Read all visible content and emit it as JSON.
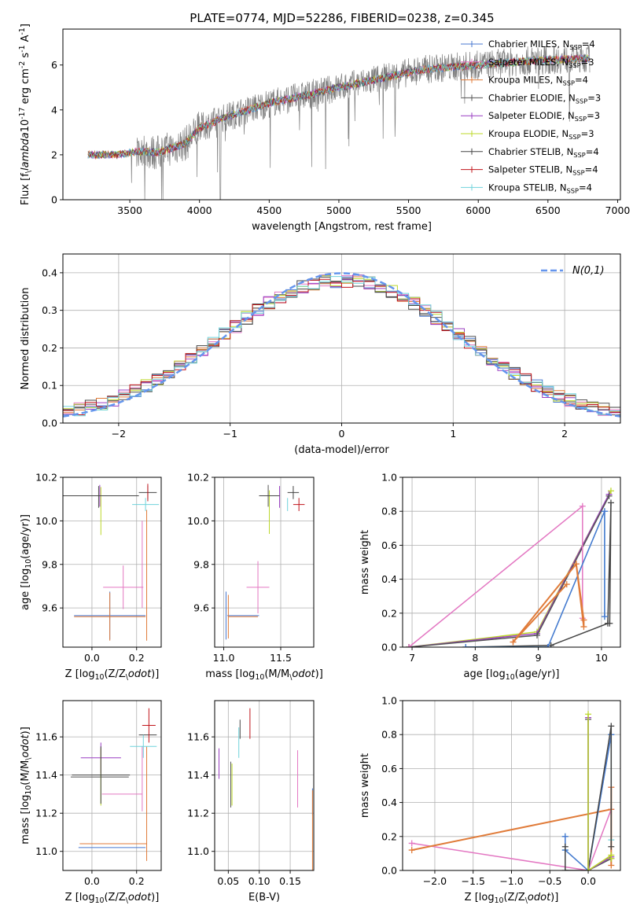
{
  "figure": {
    "title": "PLATE=0774, MJD=52286, FIBERID=0238, z=0.345"
  },
  "models": [
    {
      "label": "Chabrier MILES, N$_{SSP}$=4",
      "short": "Chabrier MILES",
      "nssp": "4",
      "color": "#4878d0"
    },
    {
      "label": "Salpeter MILES, N$_{SSP}$=3",
      "short": "Salpeter MILES",
      "nssp": "3",
      "color": "#e377c2"
    },
    {
      "label": "Kroupa MILES, N$_{SSP}$=4",
      "short": "Kroupa MILES",
      "nssp": "4",
      "color": "#e07b39"
    },
    {
      "label": "Chabrier ELODIE, N$_{SSP}$=3",
      "short": "Chabrier ELODIE",
      "nssp": "3",
      "color": "#555555"
    },
    {
      "label": "Salpeter ELODIE, N$_{SSP}$=3",
      "short": "Salpeter ELODIE",
      "nssp": "3",
      "color": "#9a3fc2"
    },
    {
      "label": "Kroupa ELODIE, N$_{SSP}$=3",
      "short": "Kroupa ELODIE",
      "nssp": "3",
      "color": "#bcd82a"
    },
    {
      "label": "Chabrier STELIB, N$_{SSP}$=4",
      "short": "Chabrier STELIB",
      "nssp": "4",
      "color": "#444444"
    },
    {
      "label": "Salpeter STELIB, N$_{SSP}$=4",
      "short": "Salpeter STELIB",
      "nssp": "4",
      "color": "#c0141b"
    },
    {
      "label": "Kroupa STELIB, N$_{SSP}$=4",
      "short": "Kroupa STELIB",
      "nssp": "4",
      "color": "#6fd3db"
    }
  ],
  "chart_data": [
    {
      "id": "spectrum",
      "type": "line",
      "xlabel": "wavelength [Angstrom, rest frame]",
      "ylabel": "Flux [f$_\\lambda$10$^{-17}$ erg cm$^{-2}$ s$^{-1}$ A$^{-1}$]",
      "xlim": [
        3020,
        7020
      ],
      "ylim": [
        0,
        7.6
      ],
      "xticks": [
        3500,
        4000,
        4500,
        5000,
        5500,
        6000,
        6500,
        7000
      ],
      "yticks": [
        0,
        2,
        4,
        6
      ],
      "grid": false,
      "legend": "top-right",
      "data_start": 3200,
      "data_end": 6800,
      "continuum_anchors": [
        [
          3200,
          2.0
        ],
        [
          3400,
          2.0
        ],
        [
          3550,
          2.15
        ],
        [
          3700,
          2.1
        ],
        [
          3900,
          2.5
        ],
        [
          4000,
          3.2
        ],
        [
          4200,
          3.7
        ],
        [
          4500,
          4.3
        ],
        [
          4800,
          4.7
        ],
        [
          5000,
          5.0
        ],
        [
          5300,
          5.4
        ],
        [
          5600,
          5.8
        ],
        [
          6000,
          6.0
        ],
        [
          6400,
          6.2
        ],
        [
          6800,
          6.3
        ]
      ]
    },
    {
      "id": "residuals",
      "type": "bar",
      "xlabel": "(data-model)/error",
      "ylabel": "Normed distribution",
      "xlim": [
        -2.5,
        2.5
      ],
      "ylim": [
        0,
        0.45
      ],
      "xticks": [
        -2,
        -1,
        0,
        1,
        2
      ],
      "yticks": [
        0.0,
        0.1,
        0.2,
        0.3,
        0.4
      ],
      "grid": true,
      "legend": "top-right",
      "bin_width": 0.1,
      "reference_curve": {
        "label": "$\\mathcal{N}(0,1)$",
        "mean": 0,
        "sigma": 1,
        "color": "#6495ED"
      }
    },
    {
      "id": "age-vs-Z",
      "type": "scatter",
      "xlabel": "Z [log$_{10}$(Z/Z$_\\odot$)]",
      "ylabel": "age  [log$_{10}$(age/yr)]",
      "xlim": [
        -0.13,
        0.31
      ],
      "ylim": [
        9.42,
        10.2
      ],
      "xticks": [
        0.0,
        0.2
      ],
      "yticks": [
        9.6,
        9.8,
        10.0,
        10.2
      ],
      "grid": true,
      "points": [
        {
          "m": 0,
          "x": 0.08,
          "y": 9.565,
          "xe": 0.16,
          "ye": 0.11
        },
        {
          "m": 1,
          "x": 0.14,
          "y": 9.695,
          "xe": 0.09,
          "ye": 0.1
        },
        {
          "m": 1,
          "x": 0.225,
          "y": 9.8,
          "xe": 0.0,
          "ye": 0.2
        },
        {
          "m": 2,
          "x": 0.08,
          "y": 9.56,
          "xe": 0.16,
          "ye": 0.11
        },
        {
          "m": 2,
          "x": 0.245,
          "y": 9.75,
          "xe": 0.0,
          "ye": 0.3
        },
        {
          "m": 3,
          "x": 0.03,
          "y": 10.11,
          "xe": 0.0,
          "ye": 0.05
        },
        {
          "m": 4,
          "x": 0.035,
          "y": 10.115,
          "xe": 0.0,
          "ye": 0.05
        },
        {
          "m": 5,
          "x": 0.04,
          "y": 10.045,
          "xe": 0.0,
          "ye": 0.11
        },
        {
          "m": 6,
          "x": 0.25,
          "y": 10.13,
          "xe": 0.04,
          "ye": 0.03
        },
        {
          "m": 6,
          "x": 0.04,
          "y": 10.115,
          "xe": 0.17,
          "ye": 0.0
        },
        {
          "m": 7,
          "x": 0.25,
          "y": 10.13,
          "xe": 0.0,
          "ye": 0.04
        },
        {
          "m": 8,
          "x": 0.24,
          "y": 10.075,
          "xe": 0.06,
          "ye": 0.03
        }
      ]
    },
    {
      "id": "age-vs-mass",
      "type": "scatter",
      "xlabel": "mass [log$_{10}$(M/M$_\\odot$)]",
      "ylabel": "",
      "xlim": [
        10.92,
        11.79
      ],
      "ylim": [
        9.42,
        10.2
      ],
      "xticks": [
        11.0,
        11.5
      ],
      "yticks": [
        9.6,
        9.8,
        10.0,
        10.2
      ],
      "grid": true,
      "points": [
        {
          "m": 0,
          "x": 11.02,
          "y": 9.565,
          "xe": 0.0,
          "ye": 0.11
        },
        {
          "m": 0,
          "x": 11.17,
          "y": 9.565,
          "xe": 0.14,
          "ye": 0.0
        },
        {
          "m": 1,
          "x": 11.3,
          "y": 9.695,
          "xe": 0.1,
          "ye": 0.12
        },
        {
          "m": 2,
          "x": 11.04,
          "y": 9.56,
          "xe": 0.0,
          "ye": 0.1
        },
        {
          "m": 2,
          "x": 11.17,
          "y": 9.56,
          "xe": 0.13,
          "ye": 0.0
        },
        {
          "m": 3,
          "x": 11.39,
          "y": 10.115,
          "xe": 0.0,
          "ye": 0.05
        },
        {
          "m": 4,
          "x": 11.49,
          "y": 10.11,
          "xe": 0.0,
          "ye": 0.05
        },
        {
          "m": 5,
          "x": 11.4,
          "y": 10.04,
          "xe": 0.0,
          "ye": 0.1
        },
        {
          "m": 6,
          "x": 11.4,
          "y": 10.115,
          "xe": 0.09,
          "ye": 0.0
        },
        {
          "m": 6,
          "x": 11.61,
          "y": 10.13,
          "xe": 0.05,
          "ye": 0.03
        },
        {
          "m": 7,
          "x": 11.66,
          "y": 10.075,
          "xe": 0.05,
          "ye": 0.03
        },
        {
          "m": 8,
          "x": 11.56,
          "y": 10.075,
          "xe": 0.0,
          "ye": 0.03
        }
      ]
    },
    {
      "id": "massweight-vs-age",
      "type": "line",
      "xlabel": "age  [log$_{10}$(age/yr)]",
      "ylabel": "mass weight",
      "xlim": [
        6.85,
        10.3
      ],
      "ylim": [
        0,
        1.0
      ],
      "xticks": [
        7,
        8,
        9,
        10
      ],
      "yticks": [
        0.0,
        0.2,
        0.4,
        0.6,
        0.8,
        1.0
      ],
      "grid": true,
      "series": [
        {
          "m": 5,
          "x": [
            6.95,
            8.98,
            10.15
          ],
          "y": [
            0.0,
            0.09,
            0.92
          ]
        },
        {
          "m": 4,
          "x": [
            6.95,
            8.98,
            10.12
          ],
          "y": [
            0.0,
            0.08,
            0.9
          ]
        },
        {
          "m": 3,
          "x": [
            6.95,
            8.98,
            10.12
          ],
          "y": [
            0.0,
            0.07,
            0.89
          ]
        },
        {
          "m": 1,
          "x": [
            6.95,
            9.7,
            9.7
          ],
          "y": [
            0.0,
            0.83,
            0.17
          ]
        },
        {
          "m": 6,
          "x": [
            7.85,
            9.2,
            10.1,
            10.15,
            10.13
          ],
          "y": [
            0.0,
            0.01,
            0.14,
            0.85,
            0.14
          ]
        },
        {
          "m": 8,
          "x": [
            7.85,
            9.15,
            10.05,
            10.05
          ],
          "y": [
            0.0,
            0.0,
            0.8,
            0.18
          ]
        },
        {
          "m": 0,
          "x": [
            7.85,
            9.15,
            10.05,
            10.05
          ],
          "y": [
            0.0,
            0.0,
            0.8,
            0.18
          ]
        },
        {
          "m": 2,
          "x": [
            8.6,
            9.6,
            9.72,
            9.72,
            9.6
          ],
          "y": [
            0.03,
            0.49,
            0.12,
            0.16,
            0.49
          ]
        },
        {
          "m": 2,
          "x": [
            8.6,
            9.45
          ],
          "y": [
            0.03,
            0.37
          ]
        }
      ]
    },
    {
      "id": "mass-vs-Z",
      "type": "scatter",
      "xlabel": "Z [log$_{10}$(Z/Z$_\\odot$)]",
      "ylabel": "mass [log$_{10}$(M/M$_\\odot$)]",
      "xlim": [
        -0.13,
        0.31
      ],
      "ylim": [
        10.9,
        11.79
      ],
      "xticks": [
        0.0,
        0.2
      ],
      "yticks": [
        11.0,
        11.2,
        11.4,
        11.6
      ],
      "grid": true,
      "points": [
        {
          "m": 0,
          "x": 0.09,
          "y": 11.02,
          "xe": 0.15,
          "ye": 0.0
        },
        {
          "m": 1,
          "x": 0.135,
          "y": 11.3,
          "xe": 0.09,
          "ye": 0.0
        },
        {
          "m": 1,
          "x": 0.225,
          "y": 11.38,
          "xe": 0.0,
          "ye": 0.17
        },
        {
          "m": 2,
          "x": 0.095,
          "y": 11.04,
          "xe": 0.15,
          "ye": 0.0
        },
        {
          "m": 2,
          "x": 0.245,
          "y": 11.25,
          "xe": 0.0,
          "ye": 0.3
        },
        {
          "m": 3,
          "x": 0.035,
          "y": 11.39,
          "xe": 0.13,
          "ye": 0.0
        },
        {
          "m": 4,
          "x": 0.04,
          "y": 11.49,
          "xe": 0.09,
          "ye": 0.08
        },
        {
          "m": 5,
          "x": 0.04,
          "y": 11.39,
          "xe": 0.0,
          "ye": 0.15
        },
        {
          "m": 6,
          "x": 0.04,
          "y": 11.4,
          "xe": 0.13,
          "ye": 0.15
        },
        {
          "m": 6,
          "x": 0.25,
          "y": 11.61,
          "xe": 0.04,
          "ye": 0.0
        },
        {
          "m": 7,
          "x": 0.255,
          "y": 11.66,
          "xe": 0.03,
          "ye": 0.09
        },
        {
          "m": 8,
          "x": 0.23,
          "y": 11.55,
          "xe": 0.06,
          "ye": 0.06
        }
      ]
    },
    {
      "id": "mass-vs-ebv",
      "type": "scatter",
      "xlabel": "E(B-V)",
      "ylabel": "",
      "xlim": [
        0.028,
        0.188
      ],
      "ylim": [
        10.9,
        11.79
      ],
      "xticks": [
        0.05,
        0.1,
        0.15
      ],
      "yticks": [
        11.0,
        11.2,
        11.4,
        11.6
      ],
      "grid": true,
      "points": [
        {
          "m": 0,
          "x": 0.186,
          "y": 11.26,
          "xe": 0.0,
          "ye": 0.07
        },
        {
          "m": 1,
          "x": 0.162,
          "y": 11.38,
          "xe": 0.0,
          "ye": 0.15
        },
        {
          "m": 2,
          "x": 0.186,
          "y": 11.06,
          "xe": 0.0,
          "ye": 0.26
        },
        {
          "m": 3,
          "x": 0.054,
          "y": 11.35,
          "xe": 0.0,
          "ye": 0.12
        },
        {
          "m": 4,
          "x": 0.035,
          "y": 11.46,
          "xe": 0.0,
          "ye": 0.08
        },
        {
          "m": 5,
          "x": 0.056,
          "y": 11.35,
          "xe": 0.0,
          "ye": 0.11
        },
        {
          "m": 6,
          "x": 0.069,
          "y": 11.64,
          "xe": 0.0,
          "ye": 0.05
        },
        {
          "m": 7,
          "x": 0.085,
          "y": 11.67,
          "xe": 0.0,
          "ye": 0.08
        },
        {
          "m": 8,
          "x": 0.067,
          "y": 11.57,
          "xe": 0.0,
          "ye": 0.08
        }
      ]
    },
    {
      "id": "massweight-vs-Z",
      "type": "line",
      "xlabel": "Z [log$_{10}$(Z/Z$_\\odot$)]",
      "ylabel": "mass weight",
      "xlim": [
        -2.42,
        0.42
      ],
      "ylim": [
        0,
        1.0
      ],
      "xticks": [
        -2.0,
        -1.5,
        -1.0,
        -0.5,
        0.0
      ],
      "yticks": [
        0.0,
        0.2,
        0.4,
        0.6,
        0.8,
        1.0
      ],
      "grid": true,
      "series": [
        {
          "m": 1,
          "x": [
            -2.3,
            0.0,
            0.3,
            0.3
          ],
          "y": [
            0.16,
            0.0,
            0.36,
            0.49
          ]
        },
        {
          "m": 2,
          "x": [
            -2.3,
            0.3,
            0.3,
            0.3
          ],
          "y": [
            0.12,
            0.36,
            0.49,
            0.03
          ]
        },
        {
          "m": 8,
          "x": [
            -0.3,
            -0.3,
            0.0,
            0.3,
            0.3
          ],
          "y": [
            0.2,
            0.12,
            0.0,
            0.8,
            0.18
          ]
        },
        {
          "m": 0,
          "x": [
            -0.3,
            -0.3,
            0.0,
            0.3
          ],
          "y": [
            0.2,
            0.12,
            0.0,
            0.8
          ]
        },
        {
          "m": 6,
          "x": [
            -0.3,
            -0.3,
            0.0,
            0.3,
            0.3
          ],
          "y": [
            0.14,
            0.0,
            0.0,
            0.85,
            0.14
          ]
        },
        {
          "m": 3,
          "x": [
            0.0,
            0.0,
            0.3
          ],
          "y": [
            0.89,
            0.0,
            0.07
          ]
        },
        {
          "m": 4,
          "x": [
            0.0,
            0.0,
            0.3
          ],
          "y": [
            0.9,
            0.0,
            0.08
          ]
        },
        {
          "m": 5,
          "x": [
            0.0,
            0.0,
            0.3,
            0.3
          ],
          "y": [
            0.92,
            0.0,
            0.09,
            0.07
          ]
        }
      ]
    }
  ]
}
